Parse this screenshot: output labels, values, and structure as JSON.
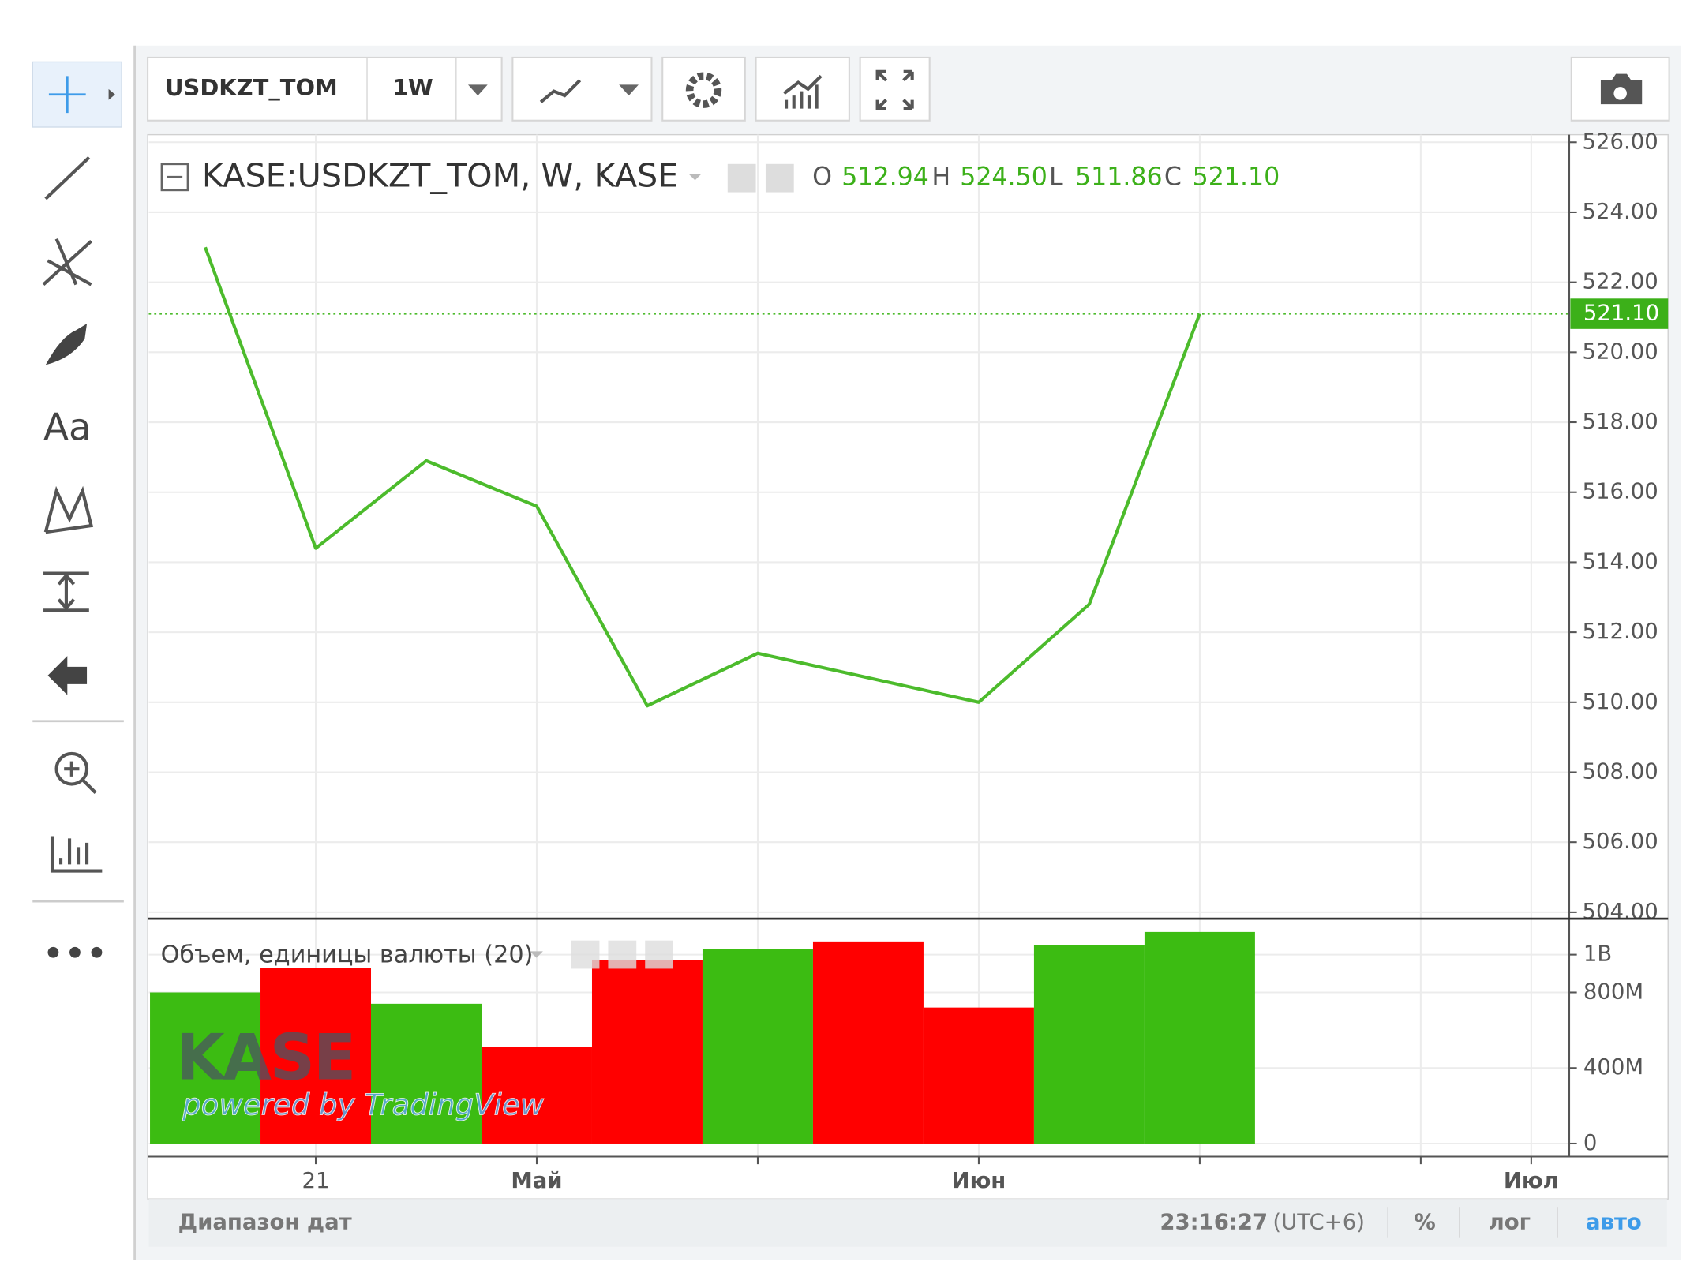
{
  "toolbar": {
    "symbol": "USDKZT_TOM",
    "interval": "1W",
    "text_tool": "Aa"
  },
  "legend": {
    "title": "KASE:USDKZT_TOM, W, KASE",
    "items": [
      {
        "label": "O",
        "value": "512.94"
      },
      {
        "label": "H",
        "value": "524.50"
      },
      {
        "label": "L",
        "value": "511.86"
      },
      {
        "label": "C",
        "value": "521.10"
      }
    ]
  },
  "watermark": {
    "logo": "KASE",
    "caption": "powered by TradingView"
  },
  "status_bar": {
    "range": "Диапазон дат",
    "time": "23:16:27",
    "timezone": "(UTC+6)",
    "percent": "%",
    "log": "лог",
    "auto": "авто"
  },
  "chart_data": [
    {
      "type": "line",
      "color": "#4cbb2c",
      "categories": [
        null,
        "21",
        null,
        "Май",
        null,
        null,
        null,
        "Июн",
        null,
        null,
        null,
        null,
        "Июл"
      ],
      "values": [
        523.0,
        514.4,
        516.9,
        515.6,
        509.9,
        511.4,
        510.7,
        510.0,
        512.8,
        521.1,
        null,
        null,
        null
      ],
      "ylim": [
        504,
        526
      ],
      "yticks": [
        {
          "value": 504,
          "label": "504.00"
        },
        {
          "value": 506,
          "label": "506.00"
        },
        {
          "value": 508,
          "label": "508.00"
        },
        {
          "value": 510,
          "label": "510.00"
        },
        {
          "value": 512,
          "label": "512.00"
        },
        {
          "value": 514,
          "label": "514.00"
        },
        {
          "value": 516,
          "label": "516.00"
        },
        {
          "value": 518,
          "label": "518.00"
        },
        {
          "value": 520,
          "label": "520.00"
        },
        {
          "value": 522,
          "label": "522.00"
        },
        {
          "value": 524,
          "label": "524.00"
        },
        {
          "value": 526,
          "label": "526.00"
        }
      ],
      "grid": true
    },
    {
      "type": "bar",
      "title": "Объем, единицы валюты (20)",
      "values": [
        800000000,
        930000000,
        740000000,
        510000000,
        970000000,
        1030000000,
        1070000000,
        720000000,
        1050000000,
        1120000000,
        null,
        null,
        null
      ],
      "colors": [
        "#3cbc12",
        "#ff0000",
        "#3cbc12",
        "#ff0000",
        "#ff0000",
        "#3cbc12",
        "#ff0000",
        "#ff0000",
        "#3cbc12",
        "#3cbc12",
        null,
        null,
        null
      ],
      "ylim": [
        0,
        1190000000
      ],
      "yticks": [
        0,
        {
          "value": 400000000,
          "label": "400M"
        },
        {
          "value": 800000000,
          "label": "800M"
        },
        {
          "value": 1000000000,
          "label": "1B"
        }
      ],
      "grid": true
    }
  ]
}
